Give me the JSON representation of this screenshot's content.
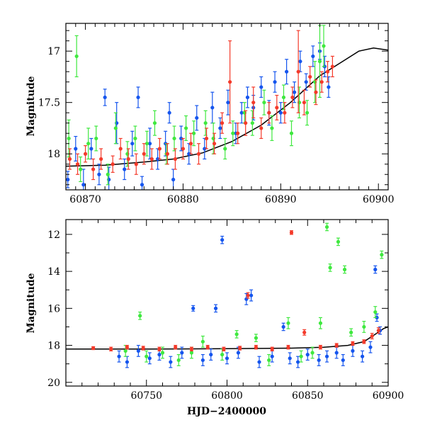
{
  "chart_data": [
    {
      "type": "scatter",
      "panel": "top",
      "title": "",
      "xlabel": "",
      "ylabel": "Magnitude",
      "xlim": [
        60868,
        60901
      ],
      "ylim": [
        18.35,
        16.73
      ],
      "y_inverted": true,
      "grid": false,
      "legend": "none",
      "xticks": [
        60870,
        60880,
        60890,
        60900
      ],
      "xtick_labels": [
        "60870",
        "60880",
        "60890",
        "60900"
      ],
      "yticks": [
        17,
        17.5,
        18
      ],
      "ytick_labels": [
        "17",
        "17.5",
        "18"
      ],
      "model_curve": {
        "color": "#000000",
        "points": [
          [
            60868,
            18.12
          ],
          [
            60872,
            18.11
          ],
          [
            60876,
            18.08
          ],
          [
            60879,
            18.05
          ],
          [
            60882,
            17.99
          ],
          [
            60885,
            17.88
          ],
          [
            60888,
            17.72
          ],
          [
            60891,
            17.5
          ],
          [
            60894,
            17.24
          ],
          [
            60896,
            17.12
          ],
          [
            60898,
            17.0
          ],
          [
            60899.5,
            16.97
          ],
          [
            60901,
            16.99
          ]
        ]
      },
      "series": [
        {
          "color": "#1555ee",
          "points": [
            [
              60868.2,
              18.25,
              0.08
            ],
            [
              60869.0,
              17.95,
              0.12
            ],
            [
              60869.8,
              18.3,
              0.15
            ],
            [
              60870.6,
              17.95,
              0.1
            ],
            [
              60871.4,
              18.2,
              0.1
            ],
            [
              60872.0,
              17.45,
              0.08
            ],
            [
              60872.4,
              18.25,
              0.12
            ],
            [
              60873.2,
              17.7,
              0.2
            ],
            [
              60874.0,
              18.15,
              0.1
            ],
            [
              60874.8,
              17.9,
              0.12
            ],
            [
              60875.4,
              17.45,
              0.1
            ],
            [
              60875.8,
              18.3,
              0.08
            ],
            [
              60876.6,
              17.9,
              0.15
            ],
            [
              60877.4,
              18.05,
              0.1
            ],
            [
              60878.2,
              17.9,
              0.12
            ],
            [
              60878.6,
              17.6,
              0.1
            ],
            [
              60879.0,
              18.25,
              0.1
            ],
            [
              60879.8,
              17.85,
              0.12
            ],
            [
              60880.6,
              18.0,
              0.1
            ],
            [
              60881.4,
              17.65,
              0.12
            ],
            [
              60882.2,
              17.95,
              0.1
            ],
            [
              60883.0,
              17.55,
              0.15
            ],
            [
              60883.8,
              17.75,
              0.1
            ],
            [
              60884.6,
              17.5,
              0.12
            ],
            [
              60885.4,
              17.8,
              0.1
            ],
            [
              60886.0,
              17.6,
              0.1
            ],
            [
              60886.6,
              17.45,
              0.1
            ],
            [
              60887.2,
              17.55,
              0.12
            ],
            [
              60888.0,
              17.35,
              0.1
            ],
            [
              60888.8,
              17.6,
              0.12
            ],
            [
              60889.4,
              17.3,
              0.1
            ],
            [
              60890.0,
              17.6,
              0.1
            ],
            [
              60890.6,
              17.2,
              0.12
            ],
            [
              60891.4,
              17.4,
              0.1
            ],
            [
              60892.0,
              17.1,
              0.1
            ],
            [
              60892.6,
              17.3,
              0.08
            ],
            [
              60893.3,
              17.05,
              0.1
            ],
            [
              60894.0,
              17.0,
              0.08
            ],
            [
              60894.5,
              17.15,
              0.1
            ],
            [
              60894.9,
              17.35,
              0.1
            ]
          ]
        },
        {
          "color": "#3fe83f",
          "points": [
            [
              60868.3,
              17.85,
              0.18
            ],
            [
              60869.1,
              17.05,
              0.2
            ],
            [
              60869.5,
              18.15,
              0.12
            ],
            [
              60870.3,
              17.9,
              0.15
            ],
            [
              60871.1,
              17.85,
              0.12
            ],
            [
              60872.3,
              18.2,
              0.1
            ],
            [
              60873.1,
              17.75,
              0.15
            ],
            [
              60874.3,
              18.0,
              0.12
            ],
            [
              60875.1,
              17.85,
              0.12
            ],
            [
              60876.3,
              17.9,
              0.12
            ],
            [
              60877.1,
              17.7,
              0.12
            ],
            [
              60878.3,
              18.0,
              0.1
            ],
            [
              60879.1,
              17.85,
              0.12
            ],
            [
              60880.3,
              17.75,
              0.12
            ],
            [
              60881.1,
              17.8,
              0.12
            ],
            [
              60882.3,
              17.7,
              0.12
            ],
            [
              60883.1,
              17.85,
              0.15
            ],
            [
              60884.3,
              17.95,
              0.1
            ],
            [
              60885.1,
              17.8,
              0.12
            ],
            [
              60886.3,
              17.6,
              0.1
            ],
            [
              60887.1,
              17.7,
              0.12
            ],
            [
              60888.3,
              17.5,
              0.12
            ],
            [
              60889.1,
              17.75,
              0.12
            ],
            [
              60890.3,
              17.45,
              0.12
            ],
            [
              60891.1,
              17.8,
              0.12
            ],
            [
              60891.9,
              17.5,
              0.15
            ],
            [
              60892.7,
              17.6,
              0.12
            ],
            [
              60893.5,
              17.3,
              0.2
            ],
            [
              60894.0,
              17.1,
              0.35
            ],
            [
              60894.4,
              16.95,
              0.2
            ]
          ]
        },
        {
          "color": "#f43a2a",
          "points": [
            [
              60868.4,
              18.05,
              0.1
            ],
            [
              60869.2,
              18.1,
              0.1
            ],
            [
              60870.0,
              18.0,
              0.08
            ],
            [
              60870.8,
              18.15,
              0.1
            ],
            [
              60871.6,
              18.05,
              0.1
            ],
            [
              60872.8,
              18.1,
              0.08
            ],
            [
              60873.6,
              17.95,
              0.1
            ],
            [
              60874.4,
              18.05,
              0.1
            ],
            [
              60875.2,
              18.1,
              0.1
            ],
            [
              60876.0,
              18.0,
              0.1
            ],
            [
              60876.8,
              18.05,
              0.1
            ],
            [
              60877.6,
              17.95,
              0.1
            ],
            [
              60878.4,
              18.0,
              0.1
            ],
            [
              60879.2,
              18.05,
              0.1
            ],
            [
              60880.0,
              17.95,
              0.1
            ],
            [
              60880.8,
              17.9,
              0.1
            ],
            [
              60881.6,
              18.0,
              0.1
            ],
            [
              60882.4,
              17.85,
              0.1
            ],
            [
              60883.2,
              17.9,
              0.1
            ],
            [
              60884.0,
              17.7,
              0.1
            ],
            [
              60884.8,
              17.3,
              0.4
            ],
            [
              60885.6,
              17.8,
              0.1
            ],
            [
              60886.4,
              17.7,
              0.12
            ],
            [
              60887.2,
              17.5,
              0.15
            ],
            [
              60888.0,
              17.75,
              0.1
            ],
            [
              60888.8,
              17.6,
              0.1
            ],
            [
              60889.6,
              17.55,
              0.12
            ],
            [
              60890.4,
              17.6,
              0.1
            ],
            [
              60891.2,
              17.45,
              0.1
            ],
            [
              60891.8,
              17.2,
              0.4
            ],
            [
              60892.4,
              17.5,
              0.12
            ],
            [
              60893.0,
              17.25,
              0.1
            ],
            [
              60893.6,
              17.4,
              0.12
            ],
            [
              60894.2,
              17.3,
              0.1
            ],
            [
              60894.8,
              17.2,
              0.1
            ],
            [
              60895.3,
              17.15,
              0.1
            ]
          ]
        }
      ]
    },
    {
      "type": "scatter",
      "panel": "bottom",
      "title": "",
      "xlabel": "HJD−2400000",
      "ylabel": "Magnitude",
      "xlim": [
        60700,
        60900
      ],
      "ylim": [
        20.2,
        11.2
      ],
      "y_inverted": true,
      "grid": false,
      "legend": "none",
      "xticks": [
        60750,
        60800,
        60850,
        60900
      ],
      "xtick_labels": [
        "60750",
        "60800",
        "60850",
        "60900"
      ],
      "yticks": [
        12,
        14,
        16,
        18,
        20
      ],
      "ytick_labels": [
        "12",
        "14",
        "16",
        "18",
        "20"
      ],
      "model_curve": {
        "color": "#000000",
        "points": [
          [
            60700,
            18.2
          ],
          [
            60750,
            18.2
          ],
          [
            60800,
            18.18
          ],
          [
            60840,
            18.15
          ],
          [
            60860,
            18.1
          ],
          [
            60875,
            18.0
          ],
          [
            60885,
            17.8
          ],
          [
            60892,
            17.4
          ],
          [
            60897,
            17.1
          ],
          [
            60900,
            17.0
          ]
        ]
      },
      "series": [
        {
          "color": "#1555ee",
          "points": [
            [
              60733,
              18.6,
              0.3
            ],
            [
              60738,
              18.9,
              0.3
            ],
            [
              60745,
              18.3,
              0.3
            ],
            [
              60752,
              18.7,
              0.3
            ],
            [
              60758,
              18.5,
              0.3
            ],
            [
              60765,
              18.9,
              0.3
            ],
            [
              60772,
              18.4,
              0.3
            ],
            [
              60779,
              16.0,
              0.15
            ],
            [
              60785,
              18.8,
              0.3
            ],
            [
              60790,
              18.5,
              0.3
            ],
            [
              60793,
              16.0,
              0.2
            ],
            [
              60797,
              12.3,
              0.2
            ],
            [
              60800,
              18.7,
              0.3
            ],
            [
              60807,
              18.4,
              0.3
            ],
            [
              60812,
              15.5,
              0.3
            ],
            [
              60815,
              15.3,
              0.3
            ],
            [
              60820,
              18.9,
              0.3
            ],
            [
              60828,
              18.6,
              0.3
            ],
            [
              60835,
              17.0,
              0.2
            ],
            [
              60839,
              18.7,
              0.3
            ],
            [
              60844,
              18.9,
              0.3
            ],
            [
              60850,
              18.5,
              0.3
            ],
            [
              60857,
              18.8,
              0.3
            ],
            [
              60862,
              18.6,
              0.3
            ],
            [
              60868,
              18.4,
              0.3
            ],
            [
              60872,
              18.8,
              0.3
            ],
            [
              60878,
              18.3,
              0.3
            ],
            [
              60884,
              18.6,
              0.3
            ],
            [
              60889,
              18.1,
              0.3
            ],
            [
              60892,
              13.9,
              0.2
            ],
            [
              60893,
              16.5,
              0.2
            ],
            [
              60895,
              17.2,
              0.2
            ]
          ]
        },
        {
          "color": "#3fe83f",
          "points": [
            [
              60737,
              18.3,
              0.3
            ],
            [
              60746,
              16.4,
              0.2
            ],
            [
              60750,
              18.6,
              0.3
            ],
            [
              60760,
              18.4,
              0.3
            ],
            [
              60770,
              18.8,
              0.3
            ],
            [
              60778,
              18.4,
              0.3
            ],
            [
              60785,
              17.8,
              0.3
            ],
            [
              60797,
              18.5,
              0.3
            ],
            [
              60806,
              17.4,
              0.2
            ],
            [
              60818,
              17.6,
              0.2
            ],
            [
              60826,
              18.8,
              0.3
            ],
            [
              60838,
              16.8,
              0.3
            ],
            [
              60846,
              18.6,
              0.3
            ],
            [
              60853,
              18.4,
              0.3
            ],
            [
              60858,
              16.8,
              0.3
            ],
            [
              60862,
              11.6,
              0.2
            ],
            [
              60864,
              13.8,
              0.2
            ],
            [
              60869,
              12.4,
              0.2
            ],
            [
              60873,
              13.9,
              0.2
            ],
            [
              60877,
              17.3,
              0.2
            ],
            [
              60885,
              17.0,
              0.3
            ],
            [
              60892,
              16.2,
              0.3
            ],
            [
              60896,
              13.1,
              0.2
            ]
          ]
        },
        {
          "color": "#f43a2a",
          "points": [
            [
              60717,
              18.15,
              0.08
            ],
            [
              60728,
              18.2,
              0.1
            ],
            [
              60738,
              18.1,
              0.1
            ],
            [
              60748,
              18.15,
              0.1
            ],
            [
              60758,
              18.2,
              0.1
            ],
            [
              60768,
              18.1,
              0.1
            ],
            [
              60778,
              18.2,
              0.1
            ],
            [
              60788,
              18.1,
              0.1
            ],
            [
              60798,
              18.2,
              0.1
            ],
            [
              60808,
              18.15,
              0.1
            ],
            [
              60813,
              15.3,
              0.15
            ],
            [
              60818,
              18.1,
              0.1
            ],
            [
              60828,
              18.2,
              0.1
            ],
            [
              60838,
              18.1,
              0.1
            ],
            [
              60840,
              11.9,
              0.1
            ],
            [
              60848,
              17.3,
              0.15
            ],
            [
              60858,
              18.1,
              0.1
            ],
            [
              60868,
              18.0,
              0.1
            ],
            [
              60878,
              17.9,
              0.1
            ],
            [
              60885,
              17.8,
              0.1
            ],
            [
              60890,
              17.5,
              0.15
            ],
            [
              60894,
              17.2,
              0.15
            ]
          ]
        }
      ]
    }
  ]
}
